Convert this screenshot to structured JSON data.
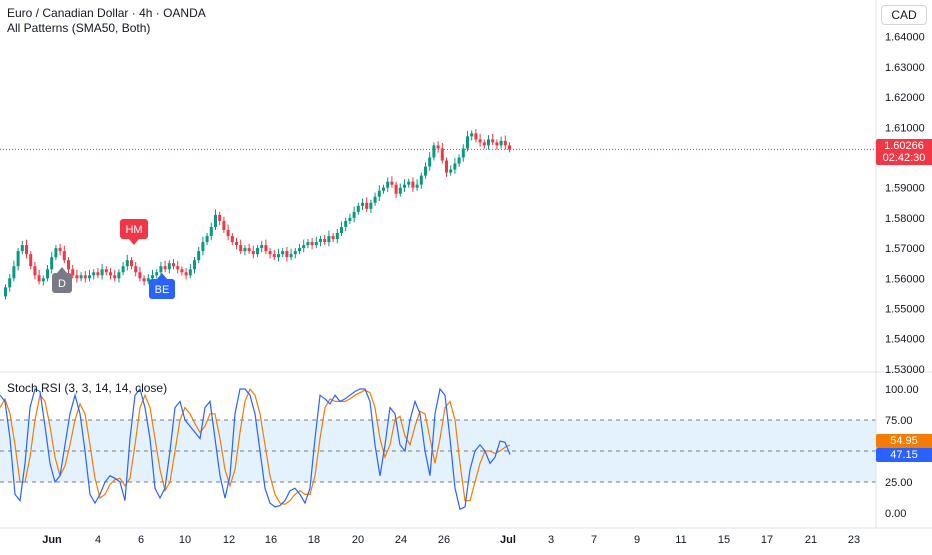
{
  "header": {
    "title": "Euro / Canadian Dollar · 4h · OANDA",
    "indicator": "All Patterns (SMA50, Both)",
    "currency": "CAD"
  },
  "price_axis": {
    "labels": [
      "1.64000",
      "1.63000",
      "1.62000",
      "1.61000",
      "1.60000",
      "1.59000",
      "1.58000",
      "1.57000",
      "1.56000",
      "1.55000",
      "1.54000",
      "1.53000"
    ],
    "current_price": "1.60266",
    "countdown": "02:42:30"
  },
  "patterns": [
    {
      "label": "HM",
      "color": "#f23645",
      "direction": "bearish"
    },
    {
      "label": "D",
      "color": "#787b86",
      "direction": "bullish"
    },
    {
      "label": "BE",
      "color": "#2962ff",
      "direction": "bullish"
    }
  ],
  "oscillator": {
    "title": "Stoch RSI (3, 3, 14, 14, close)",
    "labels": [
      "100.00",
      "75.00",
      "25.00",
      "0.00"
    ],
    "k_value": "47.15",
    "d_value": "54.95",
    "k_color": "#2962ff",
    "d_color": "#f57c00"
  },
  "time_axis": [
    "Jun",
    "4",
    "6",
    "10",
    "12",
    "16",
    "18",
    "20",
    "24",
    "26",
    "Jul",
    "3",
    "7",
    "9",
    "11",
    "15",
    "17",
    "21",
    "23"
  ],
  "colors": {
    "up": "#089981",
    "down": "#f23645",
    "band": "#e3f2fd"
  },
  "chart_data": {
    "type": "candlestick",
    "closes": [
      1.557,
      1.56,
      1.564,
      1.569,
      1.571,
      1.568,
      1.564,
      1.561,
      1.559,
      1.56,
      1.563,
      1.567,
      1.57,
      1.569,
      1.566,
      1.563,
      1.561,
      1.56,
      1.561,
      1.56,
      1.561,
      1.562,
      1.561,
      1.563,
      1.562,
      1.561,
      1.56,
      1.562,
      1.564,
      1.566,
      1.564,
      1.562,
      1.56,
      1.559,
      1.56,
      1.561,
      1.562,
      1.564,
      1.563,
      1.565,
      1.564,
      1.563,
      1.562,
      1.561,
      1.563,
      1.566,
      1.569,
      1.572,
      1.574,
      1.577,
      1.581,
      1.579,
      1.576,
      1.574,
      1.572,
      1.571,
      1.569,
      1.57,
      1.569,
      1.568,
      1.57,
      1.571,
      1.569,
      1.568,
      1.567,
      1.568,
      1.569,
      1.567,
      1.568,
      1.569,
      1.57,
      1.571,
      1.572,
      1.571,
      1.572,
      1.573,
      1.572,
      1.574,
      1.573,
      1.575,
      1.577,
      1.579,
      1.58,
      1.582,
      1.584,
      1.585,
      1.583,
      1.585,
      1.587,
      1.589,
      1.59,
      1.592,
      1.591,
      1.588,
      1.59,
      1.591,
      1.592,
      1.59,
      1.591,
      1.594,
      1.597,
      1.6,
      1.604,
      1.603,
      1.599,
      1.595,
      1.596,
      1.598,
      1.6,
      1.603,
      1.607,
      1.608,
      1.606,
      1.605,
      1.604,
      1.606,
      1.605,
      1.604,
      1.6055,
      1.604,
      1.6027
    ],
    "stoch_k": [
      95,
      90,
      60,
      15,
      10,
      40,
      85,
      100,
      98,
      70,
      40,
      25,
      30,
      55,
      80,
      95,
      80,
      50,
      15,
      8,
      15,
      25,
      30,
      28,
      25,
      10,
      60,
      95,
      100,
      85,
      60,
      20,
      12,
      20,
      50,
      85,
      90,
      75,
      70,
      65,
      60,
      85,
      90,
      60,
      30,
      12,
      30,
      80,
      100,
      100,
      95,
      80,
      50,
      20,
      8,
      5,
      6,
      10,
      18,
      20,
      15,
      8,
      20,
      60,
      95,
      92,
      88,
      95,
      90,
      92,
      95,
      98,
      100,
      100,
      90,
      55,
      30,
      55,
      85,
      80,
      55,
      50,
      75,
      90,
      80,
      50,
      30,
      80,
      100,
      95,
      60,
      20,
      3,
      5,
      35,
      50,
      55,
      50,
      40,
      45,
      58,
      57,
      47.15
    ],
    "stoch_d": [
      85,
      92,
      80,
      55,
      25,
      25,
      45,
      75,
      95,
      90,
      70,
      45,
      30,
      38,
      55,
      75,
      88,
      80,
      55,
      28,
      12,
      15,
      23,
      27,
      28,
      22,
      28,
      55,
      85,
      95,
      85,
      60,
      35,
      18,
      25,
      50,
      75,
      85,
      80,
      72,
      65,
      70,
      80,
      80,
      60,
      35,
      22,
      35,
      65,
      90,
      100,
      95,
      80,
      55,
      30,
      15,
      8,
      7,
      10,
      15,
      18,
      15,
      15,
      30,
      60,
      85,
      92,
      90,
      90,
      90,
      92,
      95,
      97,
      99,
      97,
      85,
      60,
      45,
      55,
      75,
      78,
      62,
      55,
      70,
      82,
      80,
      60,
      40,
      60,
      85,
      90,
      75,
      40,
      10,
      10,
      25,
      40,
      50,
      50,
      48,
      50,
      53,
      54.95
    ]
  }
}
